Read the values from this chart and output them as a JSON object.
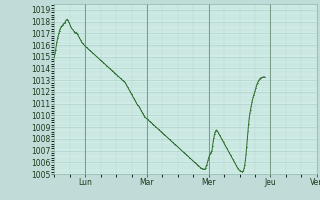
{
  "background_color": "#c0dcd8",
  "plot_bg_color": "#d0ece8",
  "grid_major_color": "#a8ccc0",
  "grid_minor_color": "#b8d8cc",
  "line_color": "#2d6e2d",
  "marker_color": "#2d6e2d",
  "vline_color": "#7a9a88",
  "ylim": [
    1005,
    1019.5
  ],
  "yticks": [
    1005,
    1006,
    1007,
    1008,
    1009,
    1010,
    1011,
    1012,
    1013,
    1014,
    1015,
    1016,
    1017,
    1018,
    1019
  ],
  "day_labels": [
    "Lun",
    "Mar",
    "Mer",
    "Jeu",
    "Ven"
  ],
  "day_positions": [
    48,
    144,
    240,
    336,
    408
  ],
  "tick_label_fontsize": 5.5,
  "tick_color": "#1a3a1a",
  "pressure_values": [
    1015.0,
    1015.3,
    1015.6,
    1016.0,
    1016.3,
    1016.6,
    1016.8,
    1017.0,
    1017.2,
    1017.4,
    1017.5,
    1017.6,
    1017.65,
    1017.7,
    1017.8,
    1017.85,
    1017.9,
    1018.0,
    1018.1,
    1018.15,
    1018.2,
    1018.1,
    1018.0,
    1017.9,
    1017.75,
    1017.6,
    1017.5,
    1017.4,
    1017.35,
    1017.3,
    1017.2,
    1017.1,
    1017.0,
    1017.05,
    1017.1,
    1017.0,
    1016.9,
    1016.8,
    1016.7,
    1016.6,
    1016.5,
    1016.4,
    1016.3,
    1016.2,
    1016.15,
    1016.1,
    1016.0,
    1015.95,
    1015.9,
    1015.85,
    1015.8,
    1015.75,
    1015.7,
    1015.65,
    1015.6,
    1015.55,
    1015.5,
    1015.45,
    1015.4,
    1015.35,
    1015.3,
    1015.25,
    1015.2,
    1015.15,
    1015.1,
    1015.05,
    1015.0,
    1014.95,
    1014.9,
    1014.85,
    1014.8,
    1014.75,
    1014.7,
    1014.65,
    1014.6,
    1014.55,
    1014.5,
    1014.45,
    1014.4,
    1014.35,
    1014.3,
    1014.25,
    1014.2,
    1014.15,
    1014.1,
    1014.05,
    1014.0,
    1013.95,
    1013.9,
    1013.85,
    1013.8,
    1013.75,
    1013.7,
    1013.65,
    1013.6,
    1013.55,
    1013.5,
    1013.45,
    1013.4,
    1013.35,
    1013.3,
    1013.25,
    1013.2,
    1013.15,
    1013.1,
    1013.05,
    1013.0,
    1012.95,
    1012.9,
    1012.85,
    1012.8,
    1012.7,
    1012.6,
    1012.5,
    1012.4,
    1012.3,
    1012.2,
    1012.1,
    1012.0,
    1011.9,
    1011.8,
    1011.7,
    1011.6,
    1011.5,
    1011.4,
    1011.3,
    1011.2,
    1011.1,
    1011.0,
    1010.9,
    1010.85,
    1010.8,
    1010.7,
    1010.6,
    1010.5,
    1010.4,
    1010.3,
    1010.2,
    1010.1,
    1010.0,
    1009.9,
    1009.85,
    1009.8,
    1009.75,
    1009.7,
    1009.65,
    1009.6,
    1009.55,
    1009.5,
    1009.45,
    1009.4,
    1009.35,
    1009.3,
    1009.25,
    1009.2,
    1009.15,
    1009.1,
    1009.05,
    1009.0,
    1008.95,
    1008.9,
    1008.85,
    1008.8,
    1008.75,
    1008.7,
    1008.65,
    1008.6,
    1008.55,
    1008.5,
    1008.45,
    1008.4,
    1008.35,
    1008.3,
    1008.25,
    1008.2,
    1008.15,
    1008.1,
    1008.05,
    1008.0,
    1007.95,
    1007.9,
    1007.85,
    1007.8,
    1007.75,
    1007.7,
    1007.65,
    1007.6,
    1007.55,
    1007.5,
    1007.45,
    1007.4,
    1007.35,
    1007.3,
    1007.25,
    1007.2,
    1007.15,
    1007.1,
    1007.05,
    1007.0,
    1006.95,
    1006.9,
    1006.85,
    1006.8,
    1006.75,
    1006.7,
    1006.65,
    1006.6,
    1006.55,
    1006.5,
    1006.45,
    1006.4,
    1006.35,
    1006.3,
    1006.25,
    1006.2,
    1006.15,
    1006.1,
    1006.05,
    1006.0,
    1005.95,
    1005.9,
    1005.85,
    1005.8,
    1005.75,
    1005.7,
    1005.65,
    1005.6,
    1005.55,
    1005.5,
    1005.48,
    1005.46,
    1005.44,
    1005.42,
    1005.4,
    1005.42,
    1005.5,
    1005.65,
    1005.8,
    1006.0,
    1006.2,
    1006.4,
    1006.55,
    1006.7,
    1006.8,
    1006.9,
    1007.0,
    1007.4,
    1007.8,
    1008.1,
    1008.4,
    1008.6,
    1008.7,
    1008.75,
    1008.7,
    1008.6,
    1008.5,
    1008.4,
    1008.3,
    1008.2,
    1008.1,
    1008.0,
    1007.9,
    1007.8,
    1007.7,
    1007.6,
    1007.5,
    1007.4,
    1007.3,
    1007.2,
    1007.1,
    1007.0,
    1006.9,
    1006.8,
    1006.7,
    1006.6,
    1006.5,
    1006.4,
    1006.3,
    1006.2,
    1006.1,
    1006.0,
    1005.9,
    1005.8,
    1005.7,
    1005.6,
    1005.5,
    1005.4,
    1005.35,
    1005.3,
    1005.25,
    1005.22,
    1005.2,
    1005.2,
    1005.22,
    1005.3,
    1005.5,
    1005.8,
    1006.2,
    1006.7,
    1007.3,
    1008.0,
    1008.7,
    1009.3,
    1009.8,
    1010.2,
    1010.5,
    1010.8,
    1011.1,
    1011.35,
    1011.55,
    1011.75,
    1011.9,
    1012.1,
    1012.3,
    1012.5,
    1012.65,
    1012.8,
    1012.9,
    1013.0,
    1013.1,
    1013.15,
    1013.2,
    1013.22,
    1013.25,
    1013.27,
    1013.28,
    1013.28,
    1013.28
  ]
}
